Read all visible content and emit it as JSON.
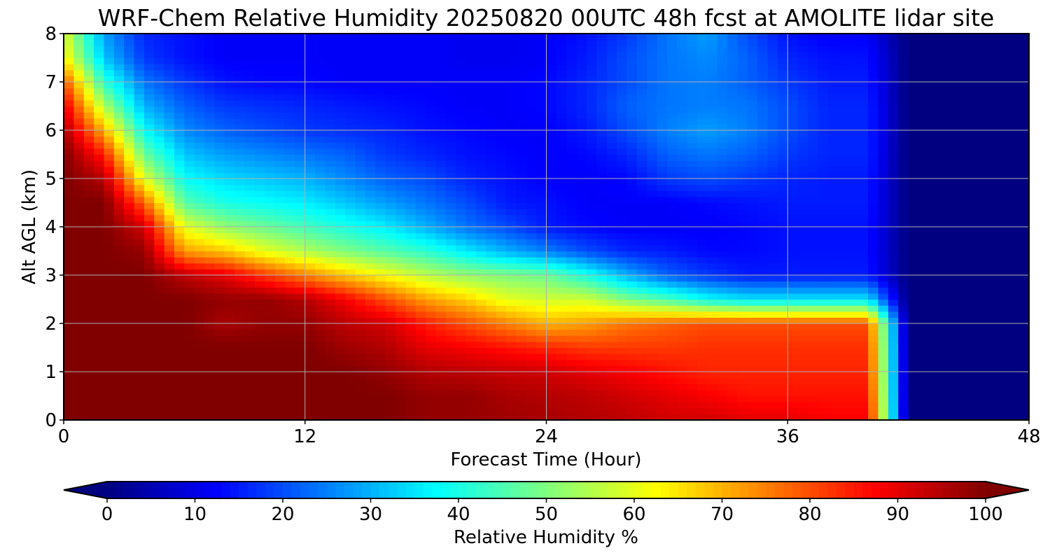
{
  "chart_data": {
    "type": "heatmap",
    "title": "WRF-Chem Relative Humidity 20250820 00UTC 48h fcst at AMOLITE lidar site",
    "xlabel": "Forecast Time (Hour)",
    "ylabel": "Alt AGL (km)",
    "xlim": [
      0,
      48
    ],
    "ylim": [
      0,
      8
    ],
    "x_ticks": [
      "0",
      "12",
      "24",
      "36",
      "48"
    ],
    "y_ticks": [
      "0",
      "1",
      "2",
      "3",
      "4",
      "5",
      "6",
      "7",
      "8"
    ],
    "grid": true,
    "x": [
      0,
      2,
      4,
      6,
      8,
      10,
      12,
      14,
      16,
      18,
      20,
      22,
      24,
      26,
      28,
      30,
      32,
      34,
      36,
      38,
      40,
      42,
      44,
      46,
      48
    ],
    "y": [
      0,
      0.5,
      1,
      1.5,
      2,
      2.5,
      3,
      3.5,
      4,
      4.5,
      5,
      5.5,
      6,
      6.5,
      7,
      7.5,
      8
    ],
    "z": [
      [
        100,
        100,
        100,
        100,
        100,
        100,
        100,
        100,
        100,
        98,
        98,
        97,
        96,
        95,
        94,
        92,
        92,
        90,
        90,
        88,
        88,
        0,
        0,
        0,
        0
      ],
      [
        100,
        100,
        100,
        100,
        100,
        100,
        100,
        100,
        100,
        98,
        98,
        96,
        95,
        94,
        92,
        90,
        88,
        86,
        86,
        86,
        86,
        0,
        0,
        0,
        0
      ],
      [
        100,
        100,
        100,
        100,
        100,
        100,
        100,
        100,
        98,
        95,
        94,
        93,
        92,
        90,
        88,
        86,
        84,
        84,
        84,
        84,
        84,
        0,
        0,
        0,
        0
      ],
      [
        100,
        100,
        100,
        100,
        100,
        100,
        100,
        97,
        95,
        90,
        88,
        86,
        84,
        82,
        82,
        82,
        83,
        83,
        83,
        83,
        83,
        0,
        0,
        0,
        0
      ],
      [
        100,
        100,
        100,
        100,
        96,
        98,
        98,
        94,
        92,
        85,
        80,
        75,
        70,
        72,
        76,
        78,
        80,
        80,
        80,
        80,
        80,
        0,
        0,
        0,
        0
      ],
      [
        100,
        100,
        100,
        100,
        98,
        98,
        95,
        88,
        80,
        72,
        67,
        60,
        58,
        58,
        50,
        45,
        38,
        35,
        35,
        35,
        35,
        0,
        0,
        0,
        0
      ],
      [
        100,
        100,
        100,
        94,
        90,
        82,
        75,
        68,
        62,
        56,
        52,
        50,
        48,
        40,
        30,
        22,
        18,
        15,
        15,
        15,
        15,
        0,
        0,
        0,
        0
      ],
      [
        100,
        100,
        98,
        72,
        68,
        60,
        55,
        50,
        46,
        42,
        36,
        30,
        25,
        20,
        16,
        15,
        13,
        13,
        14,
        14,
        14,
        0,
        0,
        0,
        0
      ],
      [
        100,
        100,
        92,
        60,
        52,
        48,
        44,
        40,
        36,
        30,
        24,
        20,
        15,
        13,
        12,
        12,
        12,
        13,
        14,
        14,
        14,
        0,
        0,
        0,
        0
      ],
      [
        100,
        100,
        78,
        46,
        40,
        38,
        36,
        32,
        28,
        24,
        20,
        15,
        14,
        12,
        12,
        12,
        13,
        14,
        15,
        15,
        15,
        0,
        0,
        0,
        0
      ],
      [
        100,
        95,
        60,
        38,
        34,
        32,
        30,
        26,
        22,
        20,
        16,
        14,
        12,
        12,
        13,
        18,
        20,
        18,
        16,
        15,
        15,
        0,
        0,
        0,
        0
      ],
      [
        100,
        85,
        48,
        32,
        28,
        26,
        24,
        22,
        18,
        16,
        14,
        13,
        12,
        13,
        16,
        22,
        24,
        22,
        18,
        16,
        16,
        0,
        0,
        0,
        0
      ],
      [
        96,
        70,
        38,
        26,
        22,
        20,
        18,
        17,
        16,
        14,
        13,
        12,
        12,
        15,
        20,
        25,
        28,
        25,
        20,
        16,
        16,
        0,
        0,
        0,
        0
      ],
      [
        90,
        55,
        30,
        22,
        18,
        17,
        16,
        15,
        14,
        13,
        12,
        12,
        13,
        16,
        22,
        24,
        25,
        24,
        20,
        16,
        16,
        0,
        0,
        0,
        0
      ],
      [
        80,
        42,
        24,
        18,
        14,
        13,
        13,
        12,
        12,
        12,
        12,
        12,
        13,
        16,
        20,
        24,
        25,
        22,
        18,
        15,
        15,
        0,
        0,
        0,
        0
      ],
      [
        64,
        32,
        18,
        14,
        12,
        12,
        12,
        12,
        12,
        12,
        11,
        11,
        12,
        15,
        20,
        24,
        26,
        22,
        16,
        14,
        14,
        0,
        0,
        0,
        0
      ],
      [
        60,
        28,
        16,
        14,
        12,
        12,
        12,
        12,
        12,
        12,
        11,
        11,
        12,
        14,
        18,
        24,
        28,
        20,
        14,
        12,
        12,
        0,
        0,
        0,
        0
      ]
    ],
    "colorbar": {
      "label": "Relative Humidity %",
      "ticks": [
        "0",
        "10",
        "20",
        "30",
        "40",
        "50",
        "60",
        "70",
        "80",
        "90",
        "100"
      ],
      "range": [
        0,
        100
      ],
      "extend": "both",
      "colormap": "jet"
    }
  }
}
